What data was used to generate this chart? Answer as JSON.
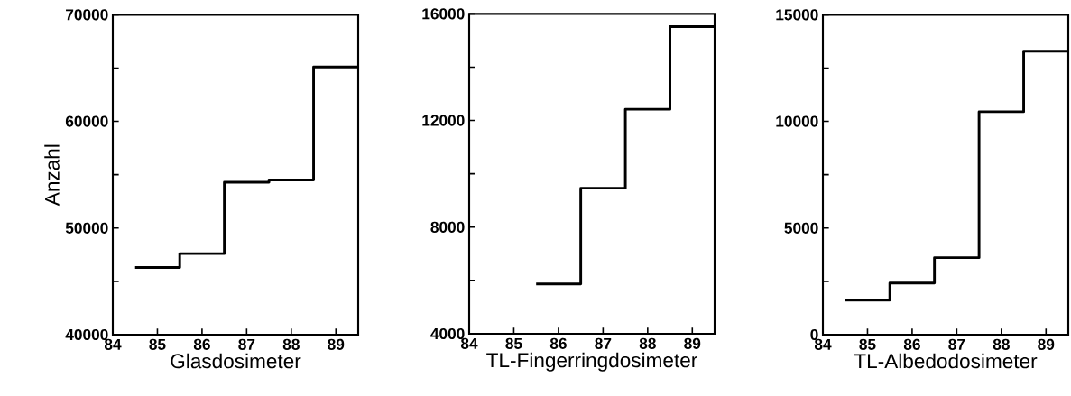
{
  "chart_data": [
    {
      "type": "histogram",
      "xlabel": "Glasdosimeter",
      "ylabel": "Anzahl",
      "color": "#000000",
      "bins": [
        84.5,
        85.5,
        86.5,
        87.5,
        88.5,
        89.5
      ],
      "values": [
        46300,
        47600,
        54300,
        54500,
        65100
      ],
      "xlim": [
        84,
        89.5
      ],
      "ylim": [
        40000,
        70000
      ],
      "xticks": [
        84,
        85,
        86,
        87,
        88,
        89
      ],
      "yticks": [
        40000,
        {
          "value": 45000,
          "label": null
        },
        50000,
        {
          "value": 55000,
          "label": null
        },
        60000,
        {
          "value": 65000,
          "label": null
        },
        70000
      ]
    },
    {
      "type": "histogram",
      "xlabel": "TL-Fingerringdosimeter",
      "color": "#000000",
      "bins": [
        85.5,
        86.5,
        87.5,
        88.5,
        89.5
      ],
      "values": [
        5870,
        9460,
        12420,
        15520
      ],
      "xlim": [
        84,
        89.5
      ],
      "ylim": [
        4000,
        16000
      ],
      "xticks": [
        84,
        85,
        86,
        87,
        88,
        89
      ],
      "yticks": [
        4000,
        {
          "value": 6000,
          "label": null
        },
        8000,
        {
          "value": 10000,
          "label": null
        },
        12000,
        {
          "value": 14000,
          "label": null
        },
        16000
      ]
    },
    {
      "type": "histogram",
      "xlabel": "TL-Albedodosimeter",
      "color": "#000000",
      "bins": [
        84.5,
        85.5,
        86.5,
        87.5,
        88.5,
        89.5
      ],
      "values": [
        1620,
        2420,
        3610,
        10450,
        13290
      ],
      "xlim": [
        84,
        89.5
      ],
      "ylim": [
        0,
        15000
      ],
      "xticks": [
        84,
        85,
        86,
        87,
        88,
        89
      ],
      "yticks": [
        0,
        {
          "value": 2500,
          "label": null
        },
        5000,
        {
          "value": 7500,
          "label": null
        },
        10000,
        {
          "value": 12500,
          "label": null
        },
        15000
      ]
    }
  ]
}
